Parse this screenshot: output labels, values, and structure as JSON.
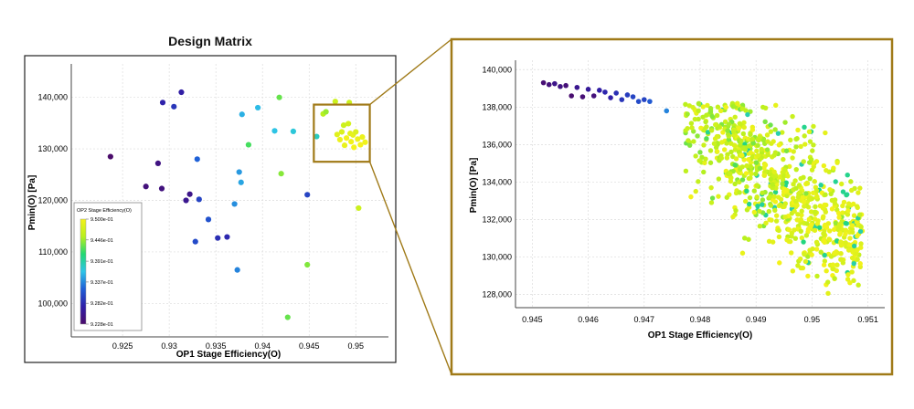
{
  "title": "Design Matrix",
  "colors": {
    "highlight_box": "#a07a18",
    "grid": "#d9d9d9",
    "axis": "#222222"
  },
  "chart_data": [
    {
      "type": "scatter",
      "title": "Design Matrix",
      "xlabel": "OP1 Stage Efficiency(O)",
      "ylabel": "Pmin(O) [Pa]",
      "xlim": [
        0.9195,
        0.9535
      ],
      "ylim": [
        93500,
        146500
      ],
      "x_ticks": [
        0.925,
        0.93,
        0.935,
        0.94,
        0.945,
        0.95
      ],
      "x_tick_labels": [
        "0.925",
        "0.93",
        "0.935",
        "0.94",
        "0.945",
        "0.95"
      ],
      "y_ticks": [
        100000,
        110000,
        120000,
        130000,
        140000
      ],
      "y_tick_labels": [
        "100,000",
        "110,000",
        "120,000",
        "130,000",
        "140,000"
      ],
      "color_var": "OP2 Stage Efficiency(O)",
      "colorbar": {
        "title": "OP2 Stage Efficiency(O)",
        "min": 0.9228,
        "max": 0.95,
        "tick_values": [
          0.95,
          0.9446,
          0.9391,
          0.9337,
          0.9282,
          0.9228
        ],
        "tick_labels": [
          "9.500e-01",
          "9.446e-01",
          "9.391e-01",
          "9.337e-01",
          "9.282e-01",
          "9.228e-01"
        ],
        "stops": [
          "#4b0c6b",
          "#2f1fa8",
          "#1f5ed6",
          "#2ec4e8",
          "#22d873",
          "#b8f01e",
          "#f4f21a"
        ]
      },
      "highlight_region": {
        "x": [
          0.9455,
          0.9515
        ],
        "y": [
          127500,
          138600
        ]
      },
      "points": [
        {
          "x": 0.9237,
          "y": 128500,
          "c": 0.9228
        },
        {
          "x": 0.9268,
          "y": 99000,
          "c": 0.9235
        },
        {
          "x": 0.9275,
          "y": 122700,
          "c": 0.924
        },
        {
          "x": 0.9288,
          "y": 127200,
          "c": 0.9245
        },
        {
          "x": 0.9292,
          "y": 122300,
          "c": 0.9242
        },
        {
          "x": 0.9293,
          "y": 139000,
          "c": 0.9275
        },
        {
          "x": 0.9305,
          "y": 138200,
          "c": 0.929
        },
        {
          "x": 0.9313,
          "y": 141000,
          "c": 0.927
        },
        {
          "x": 0.9318,
          "y": 120000,
          "c": 0.9255
        },
        {
          "x": 0.9322,
          "y": 121200,
          "c": 0.925
        },
        {
          "x": 0.9328,
          "y": 112000,
          "c": 0.9305
        },
        {
          "x": 0.933,
          "y": 128000,
          "c": 0.932
        },
        {
          "x": 0.9332,
          "y": 120200,
          "c": 0.93
        },
        {
          "x": 0.9342,
          "y": 116300,
          "c": 0.931
        },
        {
          "x": 0.9352,
          "y": 112700,
          "c": 0.9285
        },
        {
          "x": 0.9362,
          "y": 112900,
          "c": 0.928
        },
        {
          "x": 0.937,
          "y": 119300,
          "c": 0.934
        },
        {
          "x": 0.9373,
          "y": 106500,
          "c": 0.9335
        },
        {
          "x": 0.9375,
          "y": 125500,
          "c": 0.9345
        },
        {
          "x": 0.9377,
          "y": 123500,
          "c": 0.935
        },
        {
          "x": 0.9378,
          "y": 136700,
          "c": 0.9355
        },
        {
          "x": 0.9385,
          "y": 130800,
          "c": 0.942
        },
        {
          "x": 0.9395,
          "y": 138000,
          "c": 0.936
        },
        {
          "x": 0.9413,
          "y": 133500,
          "c": 0.9365
        },
        {
          "x": 0.9418,
          "y": 140000,
          "c": 0.943
        },
        {
          "x": 0.942,
          "y": 125200,
          "c": 0.944
        },
        {
          "x": 0.9427,
          "y": 97300,
          "c": 0.943
        },
        {
          "x": 0.9433,
          "y": 133400,
          "c": 0.937
        },
        {
          "x": 0.9448,
          "y": 121100,
          "c": 0.93
        },
        {
          "x": 0.9448,
          "y": 107500,
          "c": 0.9438
        },
        {
          "x": 0.9458,
          "y": 132400,
          "c": 0.938
        },
        {
          "x": 0.9465,
          "y": 136800,
          "c": 0.9455
        },
        {
          "x": 0.9468,
          "y": 137200,
          "c": 0.9445
        },
        {
          "x": 0.9478,
          "y": 139200,
          "c": 0.947
        },
        {
          "x": 0.948,
          "y": 132800,
          "c": 0.9485
        },
        {
          "x": 0.9483,
          "y": 131800,
          "c": 0.9495
        },
        {
          "x": 0.9485,
          "y": 133300,
          "c": 0.948
        },
        {
          "x": 0.9487,
          "y": 134600,
          "c": 0.947
        },
        {
          "x": 0.9488,
          "y": 130700,
          "c": 0.9492
        },
        {
          "x": 0.949,
          "y": 132100,
          "c": 0.95
        },
        {
          "x": 0.9492,
          "y": 134900,
          "c": 0.9475
        },
        {
          "x": 0.9493,
          "y": 139000,
          "c": 0.9468
        },
        {
          "x": 0.9494,
          "y": 133000,
          "c": 0.9488
        },
        {
          "x": 0.9495,
          "y": 131400,
          "c": 0.9498
        },
        {
          "x": 0.9497,
          "y": 132700,
          "c": 0.949
        },
        {
          "x": 0.9498,
          "y": 130300,
          "c": 0.95
        },
        {
          "x": 0.95,
          "y": 133300,
          "c": 0.9482
        },
        {
          "x": 0.9502,
          "y": 131900,
          "c": 0.9495
        },
        {
          "x": 0.9503,
          "y": 118500,
          "c": 0.947
        },
        {
          "x": 0.9505,
          "y": 130800,
          "c": 0.95
        },
        {
          "x": 0.9507,
          "y": 132300,
          "c": 0.9493
        },
        {
          "x": 0.951,
          "y": 131300,
          "c": 0.9497
        }
      ]
    },
    {
      "type": "scatter",
      "title": "",
      "xlabel": "OP1 Stage Efficiency(O)",
      "ylabel": "Pmin(O) [Pa]",
      "xlim": [
        0.9447,
        0.9513
      ],
      "ylim": [
        127300,
        140500
      ],
      "x_ticks": [
        0.945,
        0.946,
        0.947,
        0.948,
        0.949,
        0.95,
        0.951
      ],
      "x_tick_labels": [
        "0.945",
        "0.946",
        "0.947",
        "0.948",
        "0.949",
        "0.95",
        "0.951"
      ],
      "y_ticks": [
        128000,
        130000,
        132000,
        134000,
        136000,
        138000,
        140000
      ],
      "y_tick_labels": [
        "128,000",
        "130,000",
        "132,000",
        "134,000",
        "136,000",
        "138,000",
        "140,000"
      ],
      "color_var": "OP2 Stage Efficiency(O)",
      "color_min": 0.9228,
      "color_max": 0.95,
      "frontier_points": [
        {
          "x": 0.9452,
          "y": 139300,
          "c": 0.9235
        },
        {
          "x": 0.9453,
          "y": 139200,
          "c": 0.924
        },
        {
          "x": 0.9454,
          "y": 139250,
          "c": 0.925
        },
        {
          "x": 0.9455,
          "y": 139100,
          "c": 0.9245
        },
        {
          "x": 0.9456,
          "y": 139150,
          "c": 0.9238
        },
        {
          "x": 0.9457,
          "y": 138600,
          "c": 0.9232
        },
        {
          "x": 0.9458,
          "y": 139050,
          "c": 0.9255
        },
        {
          "x": 0.9459,
          "y": 138550,
          "c": 0.9236
        },
        {
          "x": 0.946,
          "y": 138950,
          "c": 0.9262
        },
        {
          "x": 0.9461,
          "y": 138600,
          "c": 0.924
        },
        {
          "x": 0.9462,
          "y": 138900,
          "c": 0.927
        },
        {
          "x": 0.9463,
          "y": 138800,
          "c": 0.9278
        },
        {
          "x": 0.9464,
          "y": 138500,
          "c": 0.9272
        },
        {
          "x": 0.9465,
          "y": 138750,
          "c": 0.9285
        },
        {
          "x": 0.9466,
          "y": 138400,
          "c": 0.929
        },
        {
          "x": 0.9467,
          "y": 138650,
          "c": 0.9295
        },
        {
          "x": 0.9468,
          "y": 138550,
          "c": 0.93
        },
        {
          "x": 0.9469,
          "y": 138300,
          "c": 0.9305
        },
        {
          "x": 0.947,
          "y": 138400,
          "c": 0.93
        },
        {
          "x": 0.9471,
          "y": 138300,
          "c": 0.9315
        },
        {
          "x": 0.9474,
          "y": 137800,
          "c": 0.9335
        }
      ],
      "cloud": {
        "point_count": 820,
        "c_range": [
          0.94,
          0.95
        ],
        "note": ""
      }
    }
  ]
}
